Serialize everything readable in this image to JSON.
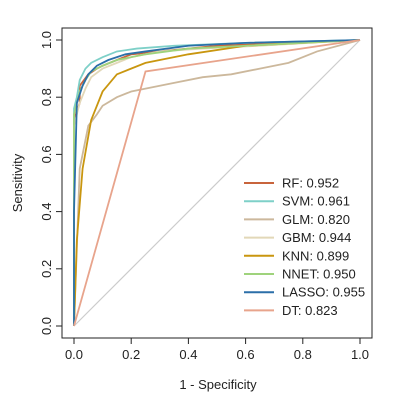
{
  "chart_data": {
    "type": "line",
    "xlabel": "1 - Specificity",
    "ylabel": "Sensitivity",
    "xlim": [
      0,
      1
    ],
    "ylim": [
      0,
      1
    ],
    "x_ticks": [
      "0.0",
      "0.2",
      "0.4",
      "0.6",
      "0.8",
      "1.0"
    ],
    "y_ticks": [
      "0.0",
      "0.2",
      "0.4",
      "0.6",
      "0.8",
      "1.0"
    ],
    "grid": false,
    "legend_position": "bottom-right",
    "reference_line": {
      "color": "#cccccc",
      "x": [
        0,
        1
      ],
      "y": [
        0,
        1
      ]
    },
    "series": [
      {
        "name": "RF: 0.952",
        "color": "#c8643c",
        "x": [
          0,
          0,
          0.02,
          0.02,
          0.05,
          0.08,
          0.1,
          0.15,
          0.2,
          0.3,
          0.5,
          1.0
        ],
        "y": [
          0,
          0.72,
          0.78,
          0.84,
          0.88,
          0.9,
          0.91,
          0.93,
          0.95,
          0.96,
          0.98,
          1.0
        ]
      },
      {
        "name": "SVM: 0.961",
        "color": "#7ed0c8",
        "x": [
          0,
          0,
          0.01,
          0.02,
          0.04,
          0.06,
          0.1,
          0.15,
          0.22,
          0.35,
          0.6,
          1.0
        ],
        "y": [
          0,
          0.76,
          0.8,
          0.86,
          0.9,
          0.92,
          0.94,
          0.96,
          0.97,
          0.98,
          0.99,
          1.0
        ]
      },
      {
        "name": "GLM: 0.820",
        "color": "#ccb89c",
        "x": [
          0,
          0.02,
          0.05,
          0.08,
          0.1,
          0.15,
          0.2,
          0.25,
          0.35,
          0.45,
          0.55,
          0.65,
          0.75,
          0.85,
          1.0
        ],
        "y": [
          0,
          0.55,
          0.7,
          0.74,
          0.77,
          0.8,
          0.82,
          0.83,
          0.85,
          0.87,
          0.88,
          0.9,
          0.92,
          0.96,
          1.0
        ]
      },
      {
        "name": "GBM: 0.944",
        "color": "#e2d8b8",
        "x": [
          0,
          0,
          0.02,
          0.04,
          0.06,
          0.1,
          0.15,
          0.2,
          0.3,
          0.45,
          0.65,
          1.0
        ],
        "y": [
          0,
          0.7,
          0.78,
          0.83,
          0.87,
          0.9,
          0.92,
          0.94,
          0.96,
          0.97,
          0.98,
          1.0
        ]
      },
      {
        "name": "KNN: 0.899",
        "color": "#c9960f",
        "x": [
          0,
          0.01,
          0.03,
          0.06,
          0.1,
          0.15,
          0.25,
          0.4,
          0.6,
          1.0
        ],
        "y": [
          0,
          0.3,
          0.55,
          0.72,
          0.82,
          0.88,
          0.92,
          0.95,
          0.98,
          1.0
        ]
      },
      {
        "name": "NNET: 0.950",
        "color": "#9fd37c",
        "x": [
          0,
          0,
          0.02,
          0.04,
          0.06,
          0.1,
          0.15,
          0.25,
          0.4,
          0.6,
          1.0
        ],
        "y": [
          0,
          0.74,
          0.82,
          0.86,
          0.89,
          0.91,
          0.93,
          0.95,
          0.97,
          0.98,
          1.0
        ]
      },
      {
        "name": "LASSO: 0.955",
        "color": "#2b6fa8",
        "x": [
          0,
          0,
          0.01,
          0.03,
          0.05,
          0.08,
          0.12,
          0.18,
          0.25,
          0.4,
          0.6,
          1.0
        ],
        "y": [
          0,
          0.4,
          0.78,
          0.84,
          0.88,
          0.91,
          0.93,
          0.95,
          0.96,
          0.98,
          0.99,
          1.0
        ]
      },
      {
        "name": "DT: 0.823",
        "color": "#e8a48c",
        "x": [
          0,
          0.25,
          1.0
        ],
        "y": [
          0,
          0.89,
          1.0
        ]
      }
    ]
  }
}
